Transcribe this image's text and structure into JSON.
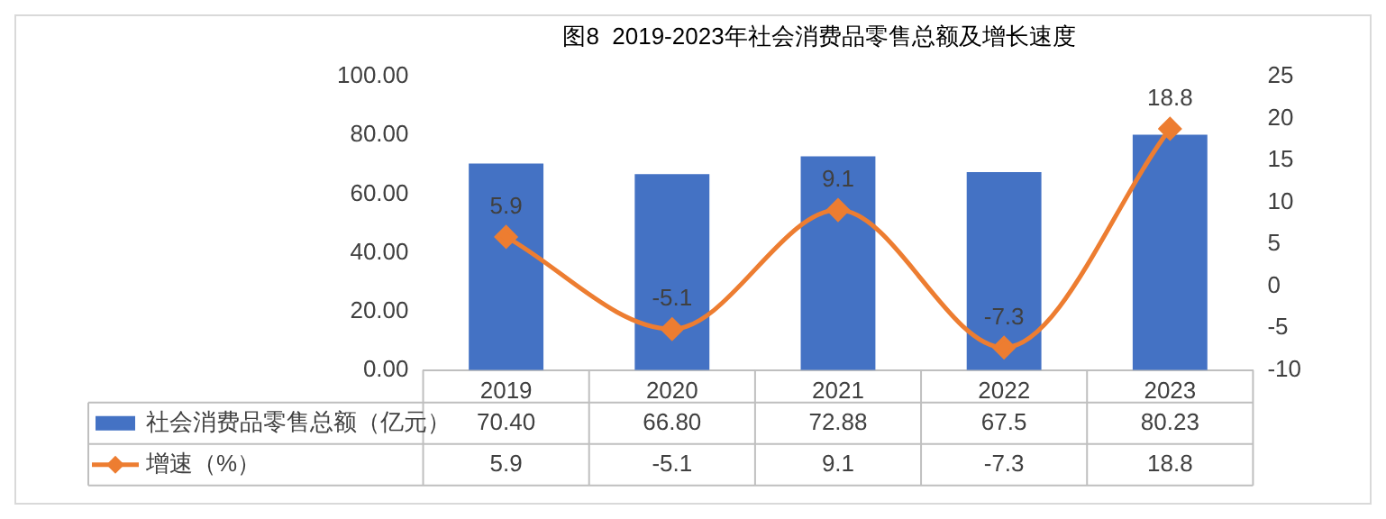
{
  "chart_data": {
    "type": "bar",
    "title": "图8  2019-2023年社会消费品零售总额及增长速度",
    "categories": [
      "2019",
      "2020",
      "2021",
      "2022",
      "2023"
    ],
    "series": [
      {
        "name": "社会消费品零售总额（亿元）",
        "color": "#4472c4",
        "values": [
          70.4,
          66.8,
          72.88,
          67.5,
          80.23
        ],
        "value_labels": [
          "70.40",
          "66.80",
          "72.88",
          "67.5",
          "80.23"
        ]
      },
      {
        "name": "增速（%）",
        "type": "line",
        "axis": "y2",
        "color": "#ed7d31",
        "values": [
          5.9,
          -5.1,
          9.1,
          -7.3,
          18.8
        ],
        "value_labels": [
          "5.9",
          "-5.1",
          "9.1",
          "-7.3",
          "18.8"
        ]
      }
    ],
    "ylim": [
      0,
      100
    ],
    "yticks": [
      {
        "value": 0,
        "label": "0.00"
      },
      {
        "value": 20,
        "label": "20.00"
      },
      {
        "value": 40,
        "label": "40.00"
      },
      {
        "value": 60,
        "label": "60.00"
      },
      {
        "value": 80,
        "label": "80.00"
      },
      {
        "value": 100,
        "label": "100.00"
      }
    ],
    "y2lim": [
      -10,
      25
    ],
    "y2ticks": [
      -10,
      -5,
      0,
      5,
      10,
      15,
      20,
      25
    ],
    "legend": "bottom",
    "marker": "diamond",
    "line_style": "solid",
    "grid": false
  }
}
